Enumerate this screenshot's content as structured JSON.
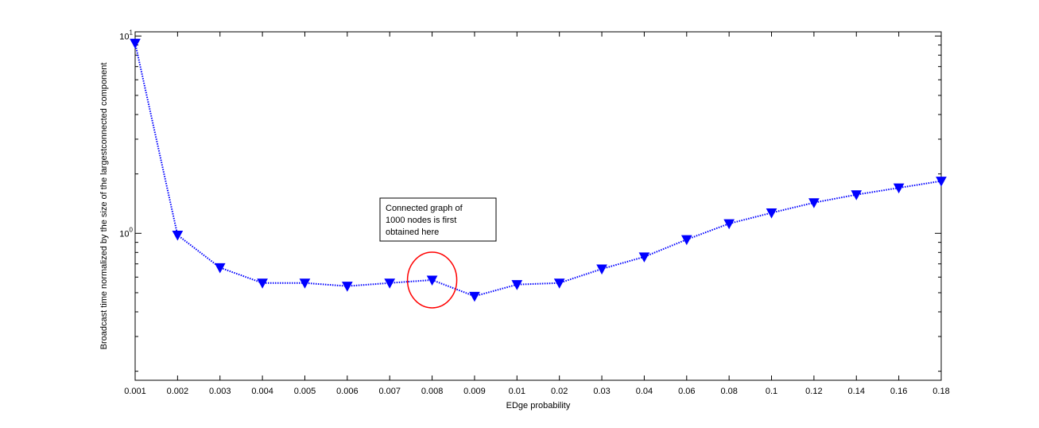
{
  "chart_data": {
    "type": "line",
    "xlabel": "EDge probability",
    "ylabel": "Broadcast time normalized by the size of the largestconnected component",
    "categories": [
      "0.001",
      "0.002",
      "0.003",
      "0.004",
      "0.005",
      "0.006",
      "0.007",
      "0.008",
      "0.009",
      "0.01",
      "0.02",
      "0.03",
      "0.04",
      "0.06",
      "0.08",
      "0.1",
      "0.12",
      "0.14",
      "0.16",
      "0.18"
    ],
    "y_scale": "log",
    "ylim": [
      0.18,
      10.5
    ],
    "y_ticks": [
      {
        "value": 1,
        "base": "10",
        "exp": "0"
      },
      {
        "value": 10,
        "base": "10",
        "exp": "1"
      }
    ],
    "series": [
      {
        "values": [
          9.2,
          0.98,
          0.67,
          0.56,
          0.56,
          0.54,
          0.56,
          0.58,
          0.48,
          0.55,
          0.56,
          0.66,
          0.76,
          0.93,
          1.12,
          1.27,
          1.43,
          1.57,
          1.7,
          1.84
        ],
        "color": "#0000ff",
        "line_style": "dotted",
        "marker": "downward-triangle"
      }
    ],
    "annotation": {
      "lines": [
        "Connected graph of",
        "1000 nodes is first",
        "obtained here"
      ],
      "highlight_category": "0.008",
      "highlight_color": "#ff0000"
    },
    "grid": false
  }
}
